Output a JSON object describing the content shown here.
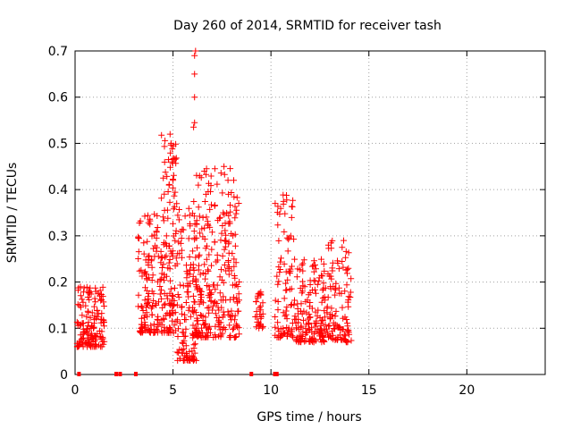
{
  "chart_data": {
    "type": "scatter",
    "title": "Day 260 of 2014, SRMTID for receiver tash",
    "xlabel": "GPS time / hours",
    "ylabel": "SRMTID / TECUs",
    "xlim": [
      0,
      24
    ],
    "ylim": [
      0,
      0.7
    ],
    "xticks": [
      "0",
      "5",
      "10",
      "15",
      "20"
    ],
    "yticks": [
      "0",
      "0.1",
      "0.2",
      "0.3",
      "0.4",
      "0.5",
      "0.6",
      "0.7"
    ],
    "grid": true,
    "marker": "+",
    "color": "#ff0000",
    "series": [
      {
        "name": "SRMTID",
        "clusters": [
          {
            "x": [
              0.1,
              1.5
            ],
            "y_min": 0.06,
            "y_max": 0.19,
            "count": 150
          },
          {
            "x": [
              3.2,
              4.4
            ],
            "y_min": 0.09,
            "y_max": 0.35,
            "count": 130
          },
          {
            "x": [
              4.4,
              5.2
            ],
            "y_min": 0.09,
            "y_max": 0.52,
            "count": 130
          },
          {
            "x": [
              5.2,
              6.2
            ],
            "y_min": 0.03,
            "y_max": 0.36,
            "count": 120
          },
          {
            "x": [
              6.0,
              7.0
            ],
            "y_min": 0.08,
            "y_max": 0.45,
            "count": 140
          },
          {
            "x": [
              7.0,
              8.4
            ],
            "y_min": 0.08,
            "y_max": 0.45,
            "count": 150
          },
          {
            "x": [
              9.2,
              9.6
            ],
            "y_min": 0.1,
            "y_max": 0.18,
            "count": 30
          },
          {
            "x": [
              10.2,
              11.2
            ],
            "y_min": 0.08,
            "y_max": 0.39,
            "count": 90
          },
          {
            "x": [
              11.2,
              12.5
            ],
            "y_min": 0.07,
            "y_max": 0.25,
            "count": 120
          },
          {
            "x": [
              12.5,
              14.1
            ],
            "y_min": 0.07,
            "y_max": 0.29,
            "count": 150
          }
        ],
        "points": [
          [
            6.1,
            0.69
          ],
          [
            6.15,
            0.7
          ],
          [
            6.1,
            0.65
          ],
          [
            6.1,
            0.6
          ],
          [
            6.05,
            0.535
          ],
          [
            6.1,
            0.545
          ],
          [
            5.85,
            0.03
          ],
          [
            4.85,
            0.52
          ],
          [
            4.9,
            0.5
          ],
          [
            4.95,
            0.46
          ],
          [
            5.0,
            0.42
          ],
          [
            6.6,
            0.44
          ],
          [
            7.6,
            0.45
          ],
          [
            8.1,
            0.42
          ]
        ],
        "zeros": [
          0.2,
          2.1,
          2.3,
          3.1,
          9.0,
          10.2,
          10.3
        ]
      }
    ]
  }
}
